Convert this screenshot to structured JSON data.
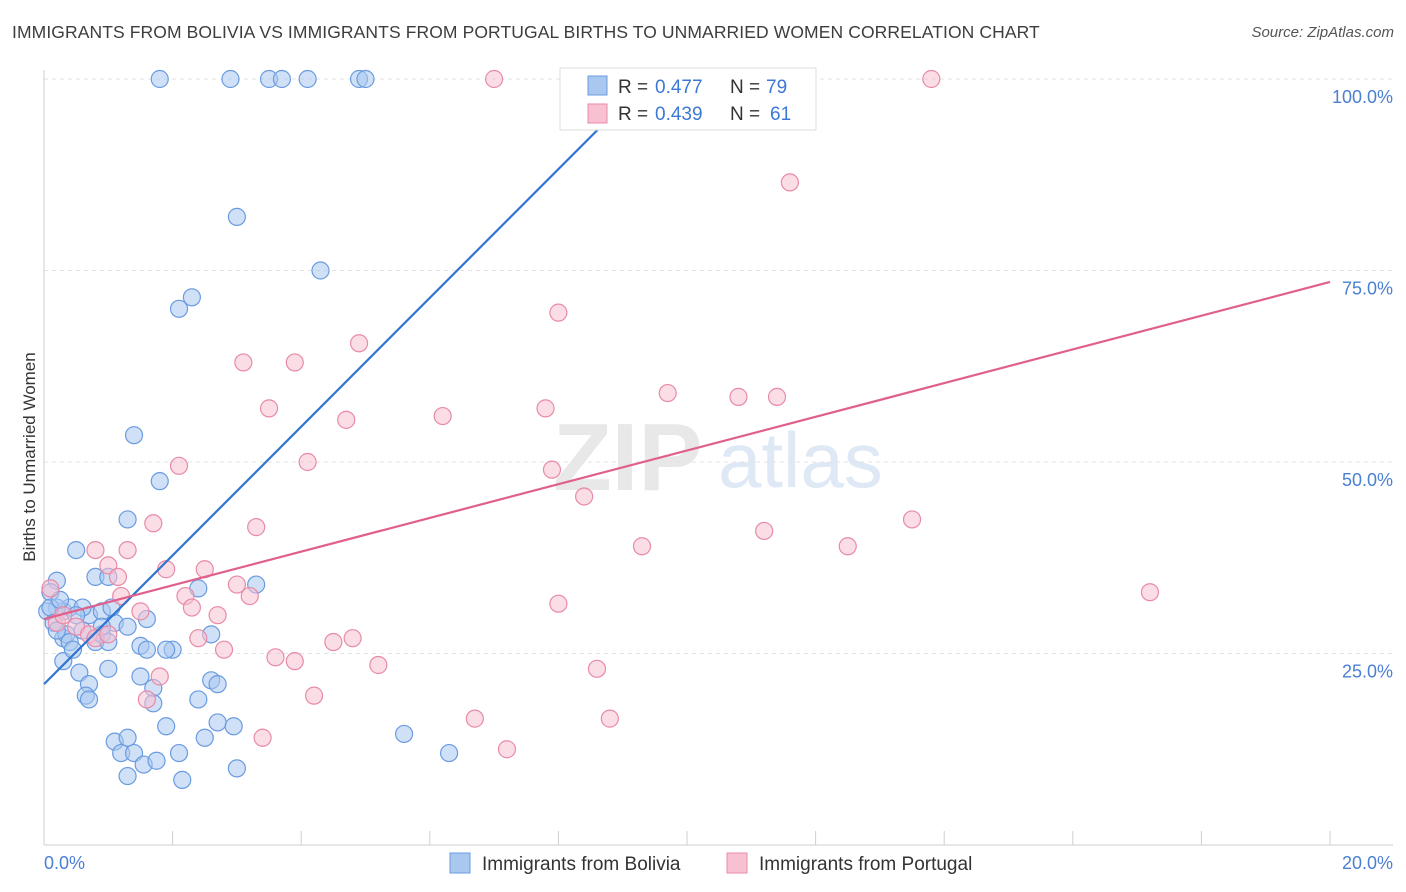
{
  "chart_data": {
    "type": "scatter",
    "title": "IMMIGRANTS FROM BOLIVIA VS IMMIGRANTS FROM PORTUGAL BIRTHS TO UNMARRIED WOMEN CORRELATION CHART",
    "source": "Source: ZipAtlas.com",
    "xlabel": "",
    "ylabel": "Births to Unmarried Women",
    "xlim": [
      0,
      20
    ],
    "ylim": [
      0,
      100
    ],
    "x_tick_labels": [
      "0.0%",
      "20.0%"
    ],
    "y_ticks": [
      25,
      50,
      75,
      100
    ],
    "y_tick_labels": [
      "25.0%",
      "50.0%",
      "75.0%",
      "100.0%"
    ],
    "legend": {
      "r_label": "R =",
      "n_label": "N =",
      "entries": [
        {
          "name": "Immigrants from Bolivia",
          "r": "0.477",
          "n": "79",
          "color": "#a9c8f0",
          "stroke": "#6a9be0",
          "line": "#2f74d0"
        },
        {
          "name": "Immigrants from Portugal",
          "r": "0.439",
          "n": "61",
          "color": "#f7c1d2",
          "stroke": "#e88aa8",
          "line": "#e0608b"
        }
      ]
    },
    "watermark": {
      "part1": "ZIP",
      "part2": "atlas"
    },
    "series": [
      {
        "name": "Immigrants from Bolivia",
        "trend": {
          "x0": 0,
          "y0": 21,
          "x1": 9.4,
          "y1": 100
        },
        "points": [
          [
            1.8,
            100
          ],
          [
            2.9,
            100
          ],
          [
            3.5,
            100
          ],
          [
            3.7,
            100
          ],
          [
            4.1,
            100
          ],
          [
            4.9,
            100
          ],
          [
            5.0,
            100
          ],
          [
            3.0,
            82
          ],
          [
            4.3,
            75
          ],
          [
            2.3,
            71.5
          ],
          [
            2.1,
            70
          ],
          [
            1.4,
            53.5
          ],
          [
            1.8,
            47.5
          ],
          [
            1.3,
            42.5
          ],
          [
            0.5,
            38.5
          ],
          [
            0.2,
            34.5
          ],
          [
            0.8,
            35
          ],
          [
            1.0,
            35
          ],
          [
            2.4,
            33.5
          ],
          [
            3.3,
            34
          ],
          [
            0.1,
            33
          ],
          [
            0.3,
            30.5
          ],
          [
            0.4,
            31
          ],
          [
            0.7,
            30
          ],
          [
            0.9,
            30.5
          ],
          [
            1.1,
            29
          ],
          [
            1.6,
            29.5
          ],
          [
            0.2,
            31
          ],
          [
            0.05,
            30.5
          ],
          [
            0.6,
            31
          ],
          [
            0.3,
            27
          ],
          [
            0.35,
            27.5
          ],
          [
            0.6,
            28
          ],
          [
            0.8,
            26.5
          ],
          [
            0.9,
            27.5
          ],
          [
            0.4,
            26.5
          ],
          [
            1.0,
            26.5
          ],
          [
            1.5,
            26
          ],
          [
            1.6,
            25.5
          ],
          [
            2.0,
            25.5
          ],
          [
            1.9,
            25.5
          ],
          [
            2.6,
            27.5
          ],
          [
            0.3,
            24
          ],
          [
            1.0,
            23
          ],
          [
            0.55,
            22.5
          ],
          [
            1.5,
            22
          ],
          [
            0.7,
            21
          ],
          [
            2.6,
            21.5
          ],
          [
            2.7,
            21
          ],
          [
            1.7,
            20.5
          ],
          [
            0.65,
            19.5
          ],
          [
            0.7,
            19
          ],
          [
            1.7,
            18.5
          ],
          [
            2.4,
            19
          ],
          [
            1.9,
            15.5
          ],
          [
            2.7,
            16
          ],
          [
            2.95,
            15.5
          ],
          [
            2.5,
            14
          ],
          [
            5.6,
            14.5
          ],
          [
            1.1,
            13.5
          ],
          [
            1.3,
            14
          ],
          [
            1.2,
            12
          ],
          [
            1.4,
            12
          ],
          [
            2.1,
            12
          ],
          [
            6.3,
            12
          ],
          [
            1.55,
            10.5
          ],
          [
            1.75,
            11
          ],
          [
            3.0,
            10
          ],
          [
            1.3,
            9
          ],
          [
            2.15,
            8.5
          ],
          [
            0.1,
            31
          ],
          [
            0.15,
            29
          ],
          [
            0.25,
            32
          ],
          [
            0.5,
            30
          ],
          [
            0.2,
            28
          ],
          [
            0.9,
            28.5
          ],
          [
            0.45,
            25.5
          ],
          [
            1.3,
            28.5
          ],
          [
            1.05,
            31
          ]
        ]
      },
      {
        "name": "Immigrants from Portugal",
        "trend": {
          "x0": 0,
          "y0": 29.5,
          "x1": 20,
          "y1": 73.5
        },
        "points": [
          [
            7.0,
            100
          ],
          [
            13.8,
            100
          ],
          [
            11.6,
            86.5
          ],
          [
            8.0,
            69.5
          ],
          [
            4.9,
            65.5
          ],
          [
            3.1,
            63
          ],
          [
            3.9,
            63
          ],
          [
            3.5,
            57
          ],
          [
            4.7,
            55.5
          ],
          [
            6.2,
            56
          ],
          [
            7.8,
            57
          ],
          [
            9.7,
            59
          ],
          [
            10.8,
            58.5
          ],
          [
            11.4,
            58.5
          ],
          [
            2.1,
            49.5
          ],
          [
            4.1,
            50
          ],
          [
            7.9,
            49
          ],
          [
            8.4,
            45.5
          ],
          [
            1.7,
            42
          ],
          [
            3.3,
            41.5
          ],
          [
            9.3,
            39
          ],
          [
            11.2,
            41
          ],
          [
            12.5,
            39
          ],
          [
            13.5,
            42.5
          ],
          [
            0.8,
            38.5
          ],
          [
            1.3,
            38.5
          ],
          [
            1.0,
            36.5
          ],
          [
            1.9,
            36
          ],
          [
            2.5,
            36
          ],
          [
            1.15,
            35
          ],
          [
            3.0,
            34
          ],
          [
            17.2,
            33
          ],
          [
            2.2,
            32.5
          ],
          [
            3.2,
            32.5
          ],
          [
            8.0,
            31.5
          ],
          [
            1.2,
            32.5
          ],
          [
            2.3,
            31
          ],
          [
            2.7,
            30
          ],
          [
            1.5,
            30.5
          ],
          [
            0.1,
            33.5
          ],
          [
            0.2,
            29
          ],
          [
            0.5,
            28.5
          ],
          [
            0.7,
            27.5
          ],
          [
            0.8,
            27
          ],
          [
            1.0,
            27.5
          ],
          [
            2.4,
            27
          ],
          [
            4.8,
            27
          ],
          [
            4.5,
            26.5
          ],
          [
            2.8,
            25.5
          ],
          [
            3.6,
            24.5
          ],
          [
            3.9,
            24
          ],
          [
            5.2,
            23.5
          ],
          [
            8.6,
            23
          ],
          [
            1.8,
            22
          ],
          [
            1.6,
            19
          ],
          [
            4.2,
            19.5
          ],
          [
            6.7,
            16.5
          ],
          [
            8.8,
            16.5
          ],
          [
            3.4,
            14
          ],
          [
            7.2,
            12.5
          ],
          [
            0.3,
            30
          ]
        ]
      }
    ]
  }
}
